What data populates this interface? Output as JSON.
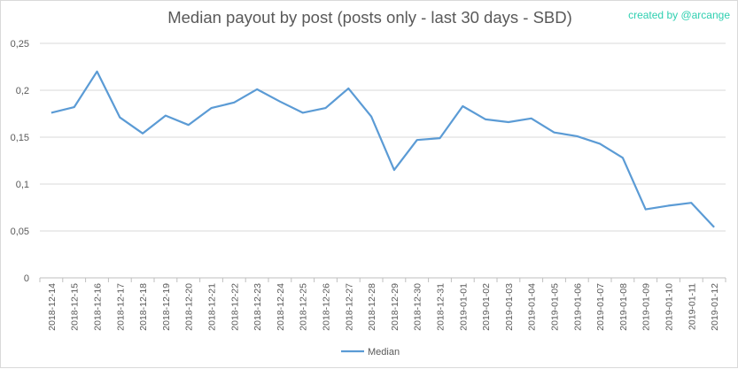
{
  "chart_data": {
    "type": "line",
    "title": "Median payout by post (posts only - last 30 days - SBD)",
    "credit": "created by @arcange",
    "xlabel": "",
    "ylabel": "",
    "ylim": [
      0,
      0.25
    ],
    "yticks": [
      "0",
      "0,05",
      "0,1",
      "0,15",
      "0,2",
      "0,25"
    ],
    "yticks_values": [
      0,
      0.05,
      0.1,
      0.15,
      0.2,
      0.25
    ],
    "grid": "horizontal",
    "legend": "bottom",
    "line_color": "#5b9bd5",
    "categories": [
      "2018-12-14",
      "2018-12-15",
      "2018-12-16",
      "2018-12-17",
      "2018-12-18",
      "2018-12-19",
      "2018-12-20",
      "2018-12-21",
      "2018-12-22",
      "2018-12-23",
      "2018-12-24",
      "2018-12-25",
      "2018-12-26",
      "2018-12-27",
      "2018-12-28",
      "2018-12-29",
      "2018-12-30",
      "2018-12-31",
      "2019-01-01",
      "2019-01-02",
      "2019-01-03",
      "2019-01-04",
      "2019-01-05",
      "2019-01-06",
      "2019-01-07",
      "2019-01-08",
      "2019-01-09",
      "2019-01-10",
      "2019-01-11",
      "2019-01-12"
    ],
    "series": [
      {
        "name": "Median",
        "values": [
          0.176,
          0.182,
          0.22,
          0.171,
          0.154,
          0.173,
          0.163,
          0.181,
          0.187,
          0.201,
          0.188,
          0.176,
          0.181,
          0.202,
          0.172,
          0.115,
          0.147,
          0.149,
          0.183,
          0.169,
          0.166,
          0.17,
          0.155,
          0.151,
          0.143,
          0.128,
          0.073,
          0.077,
          0.08,
          0.054
        ]
      }
    ]
  }
}
